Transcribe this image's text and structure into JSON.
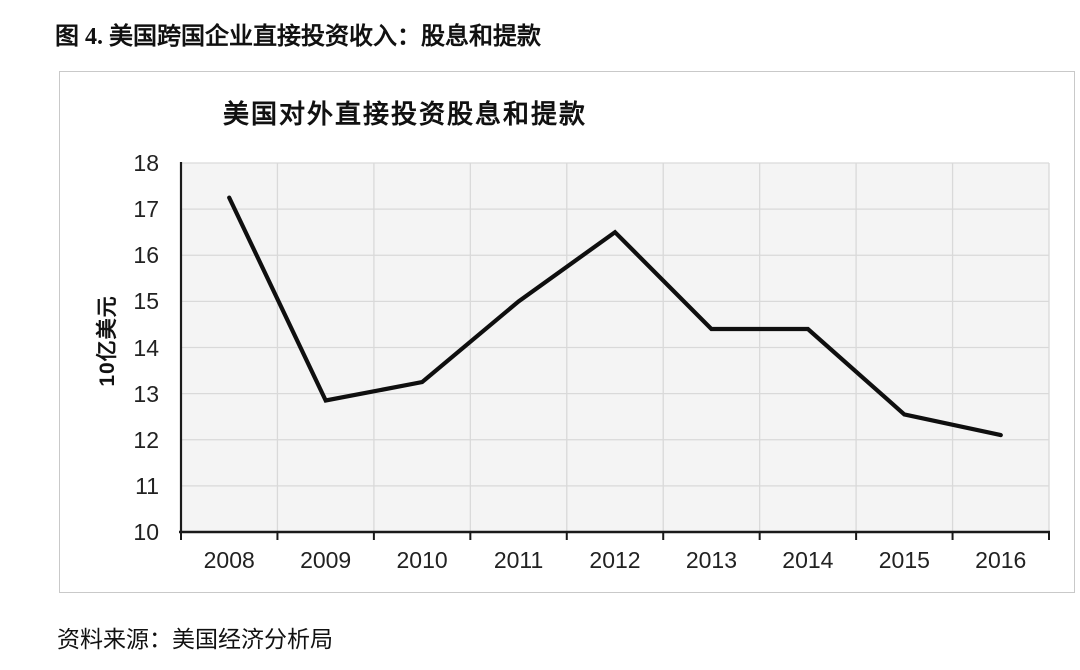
{
  "figure": {
    "title": "图 4. 美国跨国企业直接投资收入：股息和提款",
    "source": "资料来源：美国经济分析局"
  },
  "chart_data": {
    "type": "line",
    "title": "美国对外直接投资股息和提款",
    "xlabel": "",
    "ylabel": "10亿美元",
    "categories": [
      "2008",
      "2009",
      "2010",
      "2011",
      "2012",
      "2013",
      "2014",
      "2015",
      "2016"
    ],
    "values": [
      17.25,
      12.85,
      13.25,
      15.0,
      16.5,
      14.4,
      14.4,
      12.55,
      12.1
    ],
    "ylim": [
      10,
      18
    ],
    "yticks": [
      10,
      11,
      12,
      13,
      14,
      15,
      16,
      17,
      18
    ],
    "grid": true,
    "legend": "none",
    "line_color": "#0f0f0f",
    "plot_bg_color": "#f4f4f4",
    "grid_color": "#d9d9d9",
    "axis_color": "#1a1a1a"
  }
}
